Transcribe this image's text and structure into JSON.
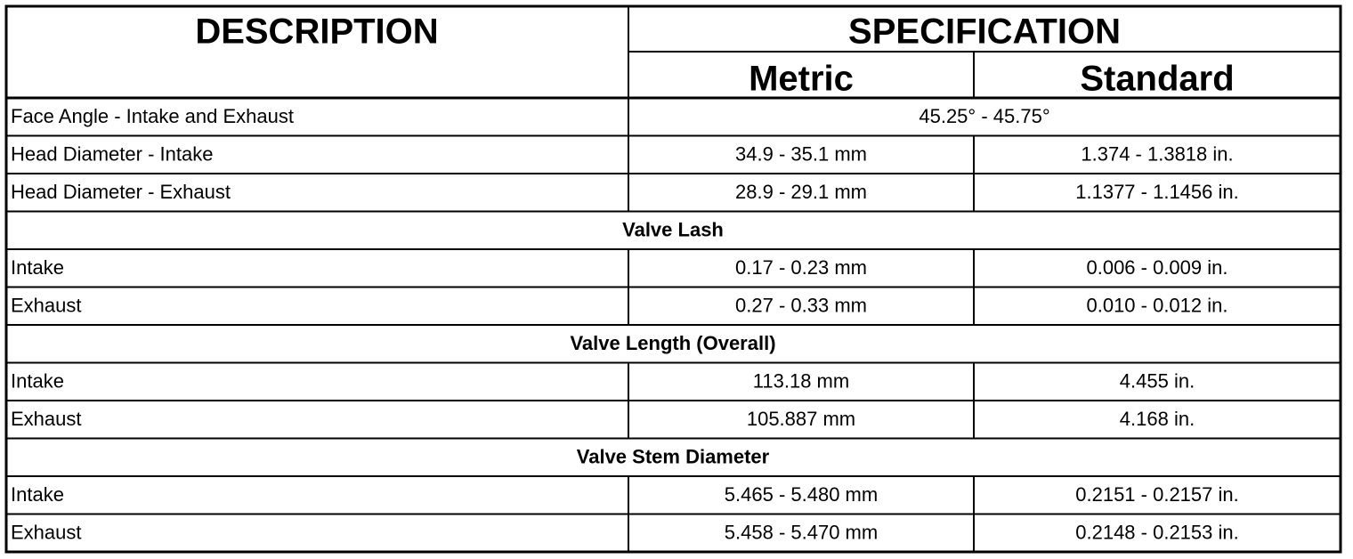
{
  "table": {
    "header": {
      "description": "DESCRIPTION",
      "specification": "SPECIFICATION",
      "metric": "Metric",
      "standard": "Standard"
    },
    "rows": [
      {
        "label": "Face Angle - Intake and Exhaust",
        "value": "45.25° - 45.75°"
      },
      {
        "label": "Head Diameter - Intake",
        "metric": "34.9 - 35.1 mm",
        "standard": "1.374 - 1.3818 in."
      },
      {
        "label": "Head Diameter - Exhaust",
        "metric": "28.9 - 29.1 mm",
        "standard": "1.1377 - 1.1456 in."
      },
      {
        "section": "Valve Lash"
      },
      {
        "label": "Intake",
        "metric": "0.17 - 0.23 mm",
        "standard": "0.006 - 0.009 in."
      },
      {
        "label": "Exhaust",
        "metric": "0.27 - 0.33 mm",
        "standard": "0.010 - 0.012 in."
      },
      {
        "section": "Valve Length (Overall)"
      },
      {
        "label": "Intake",
        "metric": "113.18 mm",
        "standard": "4.455 in."
      },
      {
        "label": "Exhaust",
        "metric": "105.887 mm",
        "standard": "4.168 in."
      },
      {
        "section": "Valve Stem Diameter"
      },
      {
        "label": "Intake",
        "metric": "5.465 - 5.480 mm",
        "standard": "0.2151 - 0.2157 in."
      },
      {
        "label": "Exhaust",
        "metric": "5.458 - 5.470 mm",
        "standard": "0.2148 - 0.2153 in."
      }
    ]
  }
}
